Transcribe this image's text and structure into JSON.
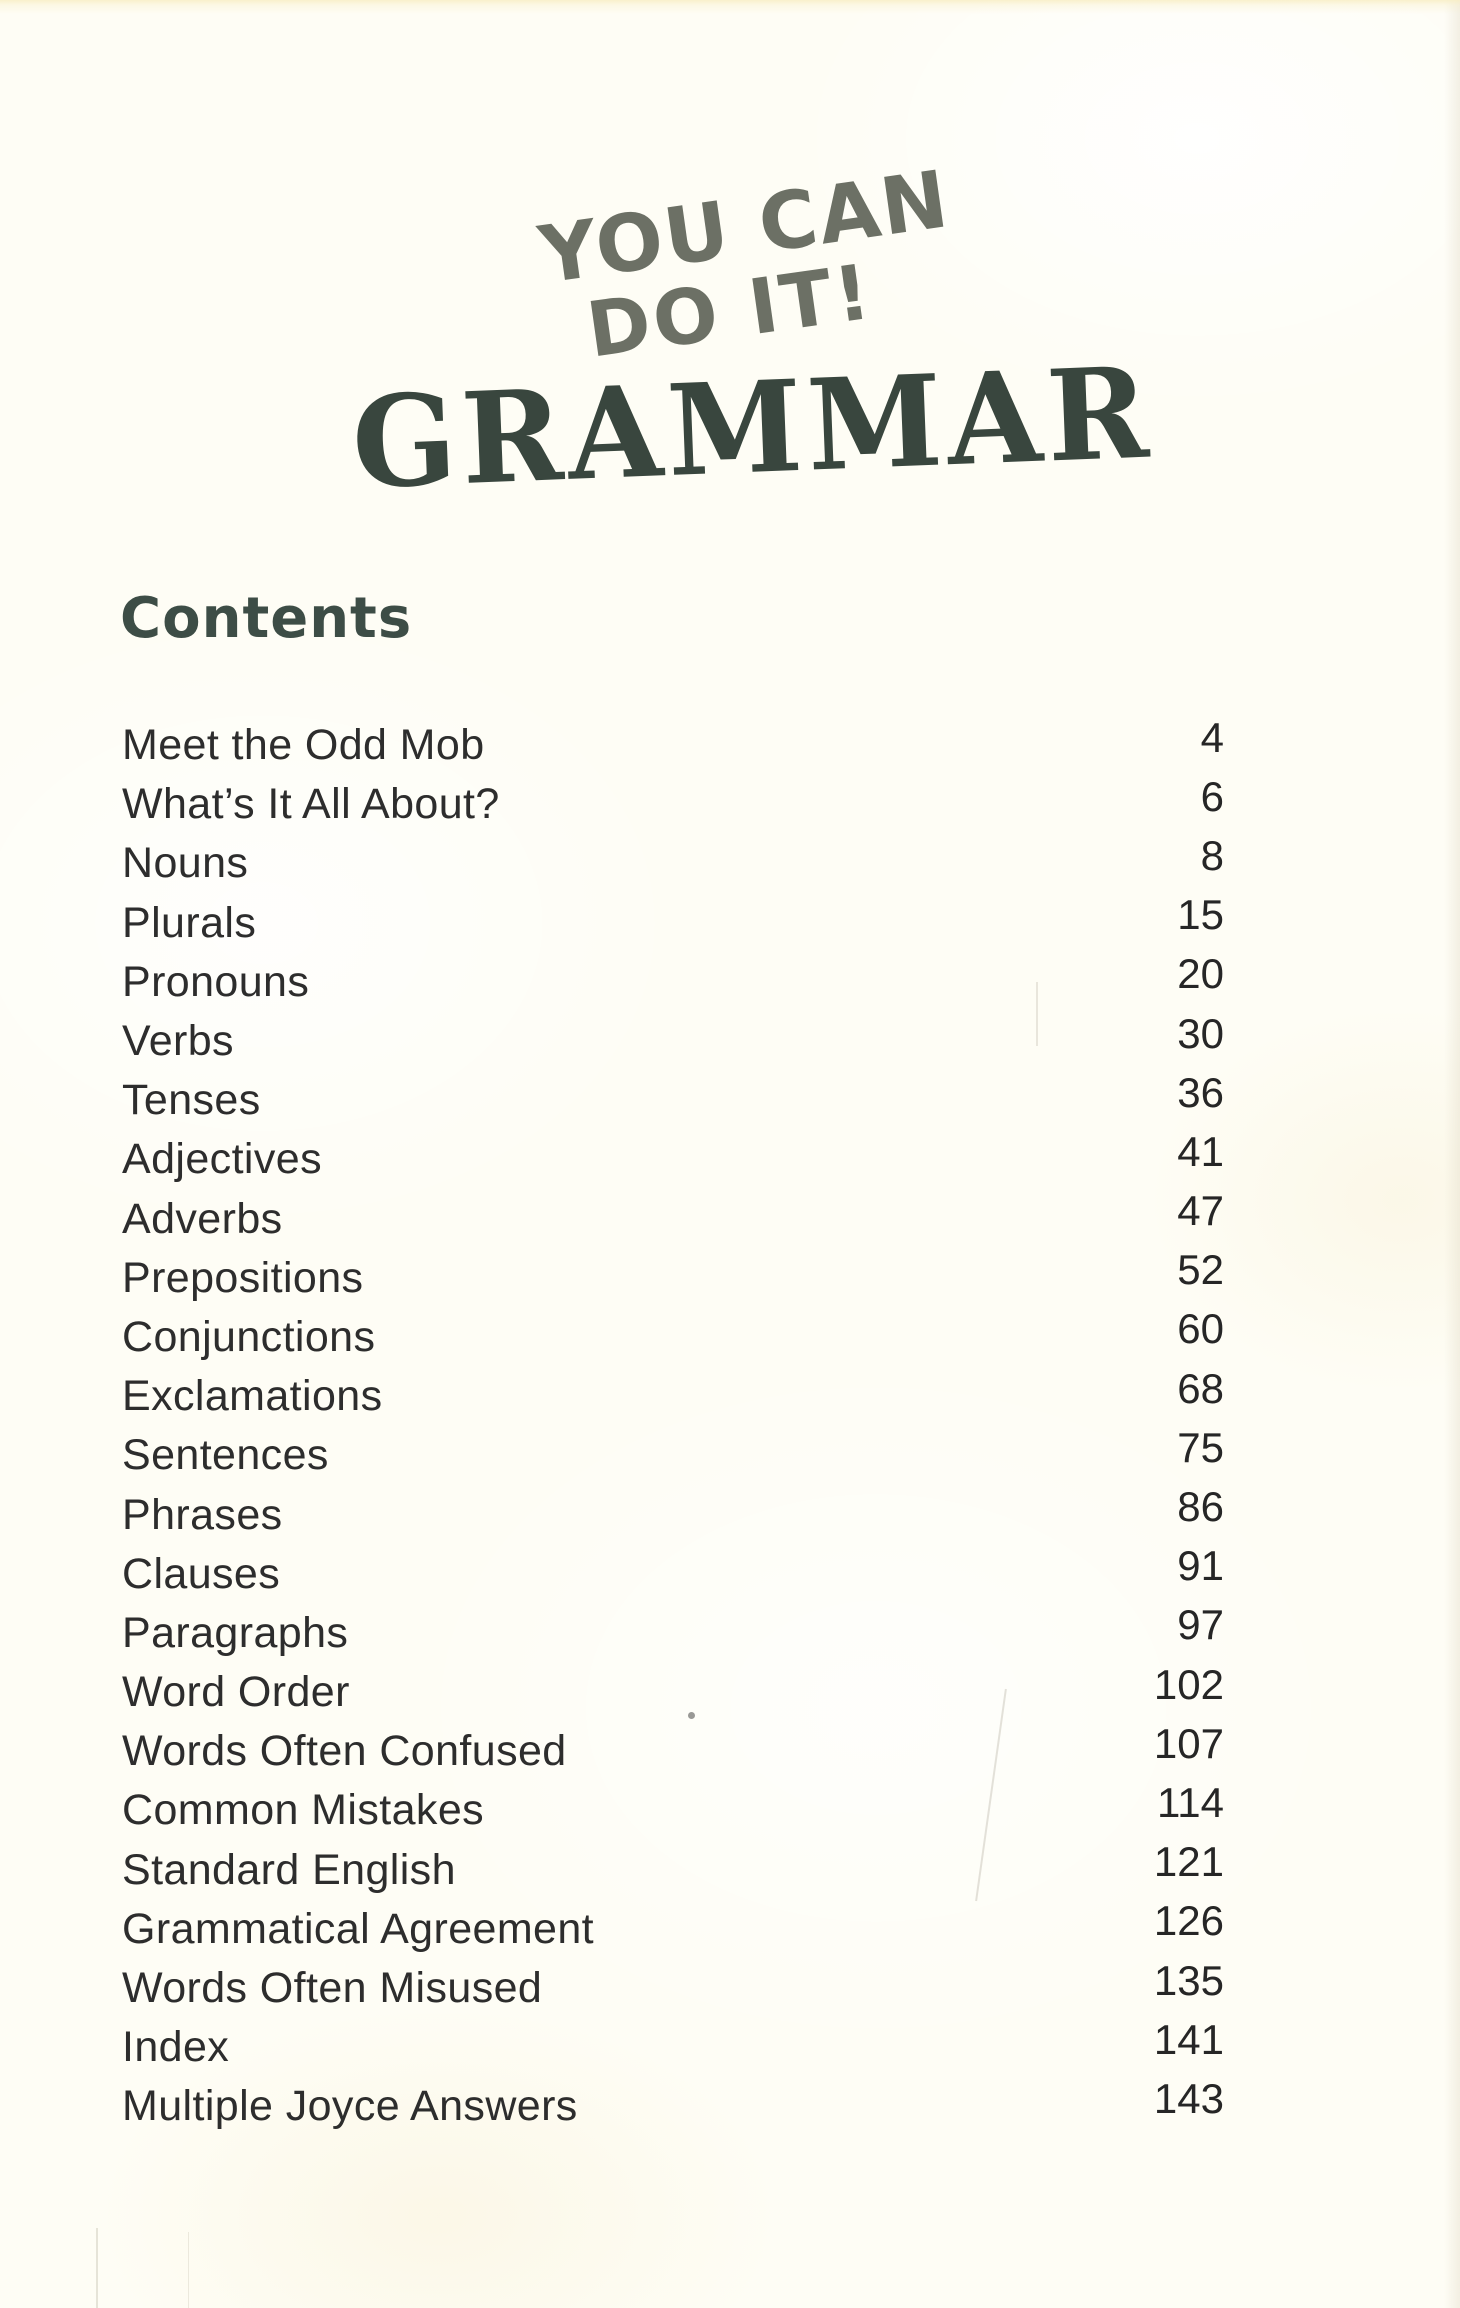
{
  "logo": {
    "line1": "YOU CAN",
    "line2": "DO IT!",
    "title": "GRAMMAR"
  },
  "contents": {
    "heading": "Contents"
  },
  "toc": [
    {
      "title": "Meet the Odd Mob",
      "page": "4"
    },
    {
      "title": "What’s It All About?",
      "page": "6"
    },
    {
      "title": "Nouns",
      "page": "8"
    },
    {
      "title": "Plurals",
      "page": "15"
    },
    {
      "title": "Pronouns",
      "page": "20"
    },
    {
      "title": "Verbs",
      "page": "30"
    },
    {
      "title": "Tenses",
      "page": "36"
    },
    {
      "title": "Adjectives",
      "page": "41"
    },
    {
      "title": "Adverbs",
      "page": "47"
    },
    {
      "title": "Prepositions",
      "page": "52"
    },
    {
      "title": "Conjunctions",
      "page": "60"
    },
    {
      "title": "Exclamations",
      "page": "68"
    },
    {
      "title": "Sentences",
      "page": "75"
    },
    {
      "title": "Phrases",
      "page": "86"
    },
    {
      "title": "Clauses",
      "page": "91"
    },
    {
      "title": "Paragraphs",
      "page": "97"
    },
    {
      "title": "Word Order",
      "page": "102"
    },
    {
      "title": "Words Often Confused",
      "page": "107"
    },
    {
      "title": "Common Mistakes",
      "page": "114"
    },
    {
      "title": "Standard English",
      "page": "121"
    },
    {
      "title": "Grammatical Agreement",
      "page": "126"
    },
    {
      "title": "Words Often Misused",
      "page": "135"
    },
    {
      "title": "Index",
      "page": "141"
    },
    {
      "title": "Multiple Joyce Answers",
      "page": "143"
    }
  ],
  "colors": {
    "page_background": "#fefdf5",
    "logo_stamp": "#6c7065",
    "title": "#39463e",
    "heading": "#3d4d46",
    "body_text": "#2d2d2d"
  }
}
